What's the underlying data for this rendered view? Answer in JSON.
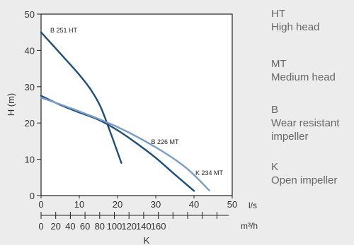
{
  "chart_data": {
    "type": "line",
    "ylabel": "H (m)",
    "ylim": [
      0,
      50
    ],
    "yticks": [
      "0",
      "10",
      "20",
      "30",
      "40",
      "50"
    ],
    "x_axis": {
      "unit": "l/s",
      "lim": [
        0,
        50
      ],
      "ticks": [
        "0",
        "10",
        "20",
        "30",
        "40",
        "50"
      ]
    },
    "x2_axis": {
      "unit": "m³/h",
      "ticks": [
        "0",
        "20",
        "40",
        "60",
        "80",
        "100",
        "120",
        "140",
        "160"
      ],
      "label": "K"
    },
    "grid": false,
    "series": [
      {
        "name": "B 251 HT",
        "color": "#1f4e79",
        "points": [
          [
            0,
            45
          ],
          [
            5,
            39.2
          ],
          [
            10,
            33.3
          ],
          [
            13,
            29.2
          ],
          [
            15.5,
            24.6
          ],
          [
            18,
            17.8
          ],
          [
            21,
            9
          ]
        ]
      },
      {
        "name": "B 226 MT",
        "color": "#1f4e79",
        "points": [
          [
            0,
            27.5
          ],
          [
            5,
            25
          ],
          [
            10,
            22.9
          ],
          [
            15,
            20.9
          ],
          [
            20,
            18
          ],
          [
            25,
            14.4
          ],
          [
            30,
            10.4
          ],
          [
            35,
            5.8
          ],
          [
            40,
            1.3
          ]
        ]
      },
      {
        "name": "K 234 MT",
        "color": "#7a9cc6",
        "points": [
          [
            0,
            27
          ],
          [
            10,
            23.2
          ],
          [
            20,
            18.9
          ],
          [
            30,
            13.3
          ],
          [
            38,
            7.6
          ],
          [
            44,
            1.4
          ]
        ]
      }
    ]
  },
  "legend": [
    {
      "code": "HT",
      "desc": [
        "High head"
      ]
    },
    {
      "code": "MT",
      "desc": [
        "Medium head"
      ]
    },
    {
      "code": "B",
      "desc": [
        "Wear resistant",
        "impeller"
      ]
    },
    {
      "code": "K",
      "desc": [
        "Open impeller"
      ]
    }
  ]
}
